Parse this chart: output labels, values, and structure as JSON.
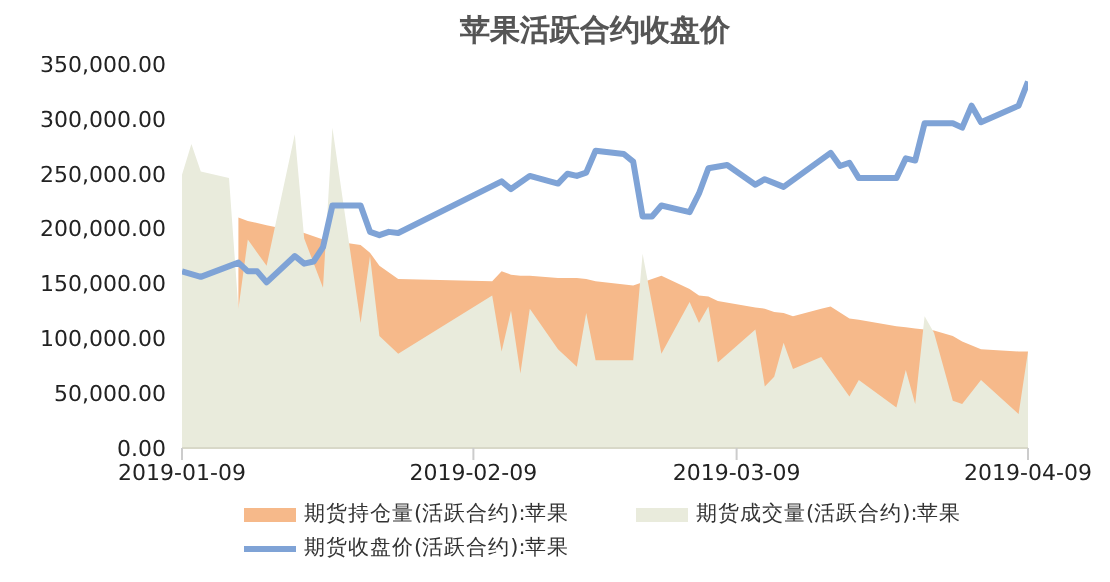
{
  "chart_data": {
    "type": "area",
    "title": "苹果活跃合约收盘价",
    "legend": "bottom",
    "grid": false,
    "xlim": [
      "2019-01-09",
      "2019-04-09"
    ],
    "xticks": [
      "2019-01-09",
      "2019-02-09",
      "2019-03-09",
      "2019-04-09"
    ],
    "ylim": [
      0,
      350000
    ],
    "yticks": [
      {
        "value": 0,
        "label": "0.00"
      },
      {
        "value": 50000,
        "label": "50,000.00"
      },
      {
        "value": 100000,
        "label": "100,000.00"
      },
      {
        "value": 150000,
        "label": "150,000.00"
      },
      {
        "value": 200000,
        "label": "200,000.00"
      },
      {
        "value": 250000,
        "label": "250,000.00"
      },
      {
        "value": 300000,
        "label": "300,000.00"
      },
      {
        "value": 350000,
        "label": "350,000.00"
      }
    ],
    "series": [
      {
        "name": "期货持仓量(活跃合约):苹果",
        "color": "#f6b98a",
        "x": [
          "2019-01-15",
          "2019-01-16",
          "2019-01-18",
          "2019-01-22",
          "2019-01-24",
          "2019-01-25",
          "2019-01-28",
          "2019-01-29",
          "2019-01-30",
          "2019-02-01",
          "2019-02-11",
          "2019-02-12",
          "2019-02-13",
          "2019-02-14",
          "2019-02-15",
          "2019-02-18",
          "2019-02-20",
          "2019-02-21",
          "2019-02-22",
          "2019-02-26",
          "2019-02-27",
          "2019-03-01",
          "2019-03-04",
          "2019-03-05",
          "2019-03-06",
          "2019-03-07",
          "2019-03-11",
          "2019-03-12",
          "2019-03-13",
          "2019-03-14",
          "2019-03-15",
          "2019-03-18",
          "2019-03-19",
          "2019-03-21",
          "2019-03-22",
          "2019-03-26",
          "2019-03-27",
          "2019-03-28",
          "2019-03-29",
          "2019-03-30",
          "2019-04-01",
          "2019-04-02",
          "2019-04-04",
          "2019-04-08",
          "2019-04-09"
        ],
        "values": [
          210000,
          207000,
          203000,
          196000,
          190000,
          null,
          185000,
          178000,
          166000,
          154000,
          152000,
          161000,
          158000,
          157000,
          157000,
          155000,
          155000,
          154000,
          152000,
          148000,
          null,
          157000,
          145000,
          139000,
          138000,
          134000,
          128000,
          127000,
          124000,
          123000,
          120000,
          127000,
          129000,
          118000,
          117000,
          111000,
          110000,
          109000,
          null,
          107000,
          102000,
          97000,
          90000,
          88000,
          88000
        ]
      },
      {
        "name": "期货成交量(活跃合约):苹果",
        "color": "#e9ebdc",
        "x": [
          "2019-01-09",
          "2019-01-10",
          "2019-01-11",
          "2019-01-14",
          "2019-01-15",
          "2019-01-16",
          "2019-01-18",
          "2019-01-21",
          "2019-01-22",
          "2019-01-24",
          "2019-01-25",
          "2019-01-28",
          "2019-01-29",
          "2019-01-30",
          "2019-02-01",
          "2019-02-11",
          "2019-02-12",
          "2019-02-13",
          "2019-02-14",
          "2019-02-15",
          "2019-02-18",
          "2019-02-20",
          "2019-02-21",
          "2019-02-22",
          "2019-02-26",
          "2019-02-27",
          "2019-03-01",
          "2019-03-04",
          "2019-03-05",
          "2019-03-06",
          "2019-03-07",
          "2019-03-11",
          "2019-03-12",
          "2019-03-13",
          "2019-03-14",
          "2019-03-15",
          "2019-03-18",
          "2019-03-21",
          "2019-03-22",
          "2019-03-26",
          "2019-03-27",
          "2019-03-28",
          "2019-03-29",
          "2019-03-30",
          "2019-04-01",
          "2019-04-02",
          "2019-04-04",
          "2019-04-08",
          "2019-04-09"
        ],
        "values": [
          249000,
          277000,
          252000,
          246000,
          127000,
          190000,
          166000,
          286000,
          191000,
          146000,
          292000,
          114000,
          175000,
          102000,
          86000,
          139000,
          88000,
          125000,
          68000,
          127000,
          90000,
          74000,
          123000,
          80000,
          80000,
          177000,
          86000,
          133000,
          114000,
          129000,
          78000,
          108000,
          56000,
          65000,
          96000,
          72000,
          83000,
          47000,
          62000,
          37000,
          71000,
          40000,
          120000,
          105000,
          43000,
          40000,
          62000,
          31000,
          88000
        ]
      },
      {
        "name": "期货收盘价(活跃合约):苹果",
        "type": "line",
        "color": "#7fa3d6",
        "x": [
          "2019-01-09",
          "2019-01-11",
          "2019-01-15",
          "2019-01-16",
          "2019-01-17",
          "2019-01-18",
          "2019-01-21",
          "2019-01-22",
          "2019-01-23",
          "2019-01-24",
          "2019-01-25",
          "2019-01-28",
          "2019-01-29",
          "2019-01-30",
          "2019-01-31",
          "2019-02-01",
          "2019-02-12",
          "2019-02-13",
          "2019-02-15",
          "2019-02-18",
          "2019-02-19",
          "2019-02-20",
          "2019-02-21",
          "2019-02-22",
          "2019-02-25",
          "2019-02-26",
          "2019-02-27",
          "2019-02-28",
          "2019-03-01",
          "2019-03-04",
          "2019-03-05",
          "2019-03-06",
          "2019-03-08",
          "2019-03-11",
          "2019-03-12",
          "2019-03-14",
          "2019-03-19",
          "2019-03-20",
          "2019-03-21",
          "2019-03-22",
          "2019-03-26",
          "2019-03-27",
          "2019-03-28",
          "2019-03-29",
          "2019-04-01",
          "2019-04-02",
          "2019-04-03",
          "2019-04-04",
          "2019-04-08",
          "2019-04-09"
        ],
        "values": [
          161000,
          156000,
          169000,
          161000,
          161000,
          151000,
          175000,
          168000,
          170000,
          183000,
          221000,
          221000,
          197000,
          194000,
          197000,
          196000,
          243000,
          236000,
          248000,
          241000,
          250000,
          248000,
          251000,
          271000,
          268000,
          261000,
          211000,
          211000,
          221000,
          215000,
          232000,
          255000,
          258000,
          240000,
          245000,
          238000,
          269000,
          257000,
          260000,
          246000,
          246000,
          264000,
          262000,
          296000,
          296000,
          292000,
          312000,
          297000,
          312000,
          334000
        ]
      }
    ]
  }
}
